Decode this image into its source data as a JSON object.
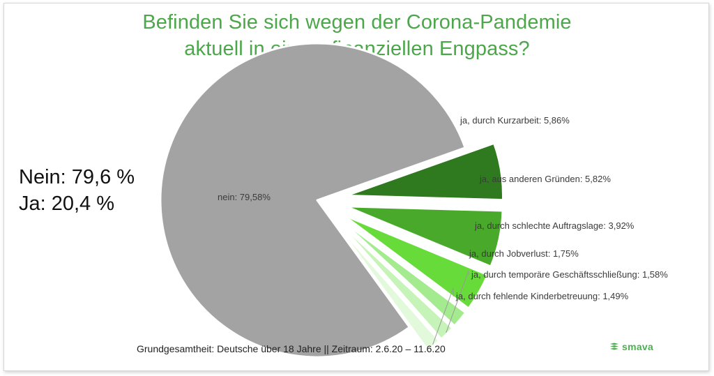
{
  "title_lines": [
    "Befinden Sie sich wegen der Corona-Pandemie",
    "aktuell in einem finanziellen Engpass?"
  ],
  "summary": {
    "nein": "Nein: 79,6 %",
    "ja": "Ja: 20,4 %"
  },
  "footnote": "Grundgesamtheit: Deutsche über 18 Jahre || Zeitraum: 2.6.20 – 11.6.20",
  "brand": {
    "name": "smava",
    "icon": "smava-logo-icon"
  },
  "colors": {
    "title": "#4ca64a",
    "nein": "#a3a3a3",
    "kurzarbeit": "#2f7a1f",
    "andere_gruende": "#48a92a",
    "auftragslage": "#66db3a",
    "jobverlust": "#a4eb90",
    "geschaeftsschliessung": "#c6f3b8",
    "kinderbetreuung": "#e3f9dc"
  },
  "chart_data": {
    "type": "pie",
    "slices": [
      {
        "key": "nein",
        "label": "nein: 79,58%",
        "value": 79.58
      },
      {
        "key": "kurzarbeit",
        "label": "ja, durch Kurzarbeit: 5,86%",
        "value": 5.86
      },
      {
        "key": "andere_gruende",
        "label": "ja, aus anderen Gründen: 5,82%",
        "value": 5.82
      },
      {
        "key": "auftragslage",
        "label": "ja, durch schlechte Auftragslage: 3,92%",
        "value": 3.92
      },
      {
        "key": "jobverlust",
        "label": "ja, durch Jobverlust: 1,75%",
        "value": 1.75
      },
      {
        "key": "geschaeftsschliessung",
        "label": "ja, durch temporäre Geschäftsschließung: 1,58%",
        "value": 1.58
      },
      {
        "key": "kinderbetreuung",
        "label": "ja, durch fehlende Kinderbetreuung: 1,49%",
        "value": 1.49
      }
    ]
  }
}
